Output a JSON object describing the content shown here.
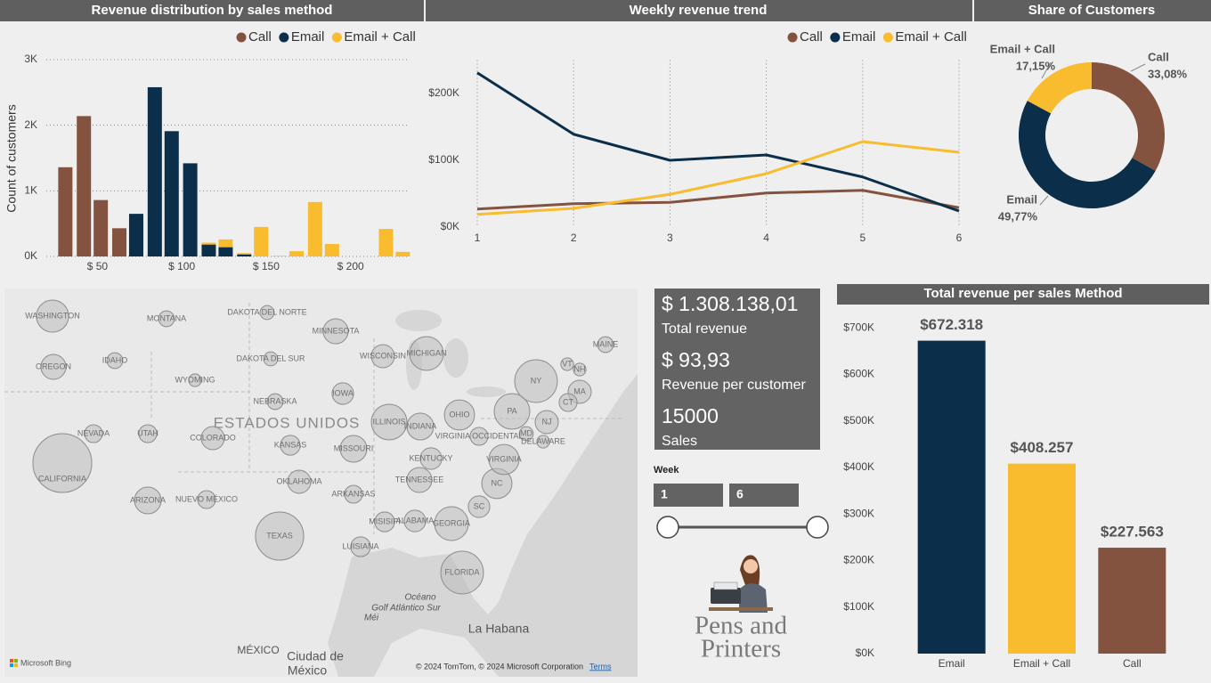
{
  "chart_data": [
    {
      "type": "bar",
      "title": "Revenue distribution by sales method",
      "y_label": "Count of customers",
      "xlim": [
        25,
        235
      ],
      "xticks": [
        {
          "value": 50,
          "label": "$ 50"
        },
        {
          "value": 100,
          "label": "$ 100"
        },
        {
          "value": 150,
          "label": "$ 150"
        },
        {
          "value": 200,
          "label": "$ 200"
        }
      ],
      "ylim": [
        0,
        3000
      ],
      "yticks": [
        {
          "value": 0,
          "label": "0K"
        },
        {
          "value": 1000,
          "label": "1K"
        },
        {
          "value": 2000,
          "label": "2K"
        },
        {
          "value": 3000,
          "label": "3K"
        }
      ],
      "grid": true,
      "legend": "top-right",
      "series": [
        {
          "name": "Call",
          "color": "#84533f",
          "x": [
            31,
            42,
            52,
            63
          ],
          "values": [
            1360,
            2140,
            860,
            430
          ]
        },
        {
          "name": "Email",
          "color": "#0b2f4a",
          "x": [
            73,
            84,
            94,
            105,
            116,
            126,
            137
          ],
          "values": [
            650,
            2580,
            1910,
            1420,
            180,
            140,
            30
          ]
        },
        {
          "name": "Email + Call",
          "color": "#f8bc2e",
          "x": [
            116,
            126,
            137,
            147,
            158,
            168,
            179,
            189,
            221,
            231
          ],
          "values": [
            210,
            260,
            50,
            450,
            10,
            80,
            830,
            190,
            420,
            70
          ]
        }
      ]
    },
    {
      "type": "line",
      "title": "Weekly revenue trend",
      "x": [
        1,
        2,
        3,
        4,
        5,
        6
      ],
      "xlim": [
        1,
        6
      ],
      "xticks": [
        1,
        2,
        3,
        4,
        5,
        6
      ],
      "ylim": [
        0,
        250000
      ],
      "yticks": [
        {
          "value": 0,
          "label": "$0K"
        },
        {
          "value": 100000,
          "label": "$100K"
        },
        {
          "value": 200000,
          "label": "$200K"
        }
      ],
      "grid": true,
      "legend": "top-right",
      "series": [
        {
          "name": "Call",
          "color": "#84533f",
          "values": [
            27000,
            35000,
            37000,
            51000,
            55000,
            29000
          ]
        },
        {
          "name": "Email",
          "color": "#0b2f4a",
          "values": [
            231000,
            139000,
            100000,
            108000,
            75000,
            24000
          ]
        },
        {
          "name": "Email + Call",
          "color": "#f8bc2e",
          "values": [
            19000,
            28000,
            49000,
            80000,
            128000,
            112000
          ]
        }
      ]
    },
    {
      "type": "pie",
      "title": "Share of Customers",
      "donut": true,
      "categories": [
        "Call",
        "Email",
        "Email + Call"
      ],
      "values": [
        33.08,
        49.77,
        17.15
      ],
      "value_labels": [
        "33,08%",
        "49,77%",
        "17,15%"
      ],
      "colors": [
        "#84533f",
        "#0b2f4a",
        "#f8bc2e"
      ]
    },
    {
      "type": "bar",
      "title": "Total revenue per sales Method",
      "categories": [
        "Email",
        "Email + Call",
        "Call"
      ],
      "values": [
        672318,
        408257,
        227563
      ],
      "value_labels": [
        "$672.318",
        "$408.257",
        "$227.563"
      ],
      "colors": [
        "#0b2f4a",
        "#f8bc2e",
        "#84533f"
      ],
      "ylim": [
        0,
        750000
      ],
      "yticks": [
        {
          "value": 0,
          "label": "$0K"
        },
        {
          "value": 100000,
          "label": "$100K"
        },
        {
          "value": 200000,
          "label": "$200K"
        },
        {
          "value": 300000,
          "label": "$300K"
        },
        {
          "value": 400000,
          "label": "$400K"
        },
        {
          "value": 500000,
          "label": "$500K"
        },
        {
          "value": 600000,
          "label": "$600K"
        },
        {
          "value": 700000,
          "label": "$700K"
        }
      ],
      "grid": false
    }
  ],
  "kpis": [
    {
      "value": "$ 1.308.138,01",
      "label": "Total revenue"
    },
    {
      "value": "$ 93,93",
      "label": "Revenue per customer"
    },
    {
      "value": "15000",
      "label": "Sales"
    }
  ],
  "slicer": {
    "title": "Week",
    "start": 1,
    "end": 6
  },
  "logo": {
    "lines": [
      "Pens and",
      "Printers"
    ]
  },
  "map": {
    "country": "ESTADOS UNIDOS",
    "places": [
      {
        "name": "WASHINGTON",
        "size": 580
      },
      {
        "name": "OREGON",
        "size": 350
      },
      {
        "name": "CALIFORNIA",
        "size": 1940
      },
      {
        "name": "NEVADA",
        "size": 180
      },
      {
        "name": "IDAHO",
        "size": 140
      },
      {
        "name": "MONTANA",
        "size": 140
      },
      {
        "name": "UTAH",
        "size": 180
      },
      {
        "name": "ARIZONA",
        "size": 400
      },
      {
        "name": "COLORADO",
        "size": 300
      },
      {
        "name": "NUEVO MÉXICO",
        "size": 180
      },
      {
        "name": "WYOMING",
        "size": 90
      },
      {
        "name": "DAKOTA DEL NORTE",
        "size": 110
      },
      {
        "name": "DAKOTA DEL SUR",
        "size": 110
      },
      {
        "name": "NEBRASKA",
        "size": 140
      },
      {
        "name": "KANSAS",
        "size": 220
      },
      {
        "name": "OKLAHOMA",
        "size": 300
      },
      {
        "name": "TEXAS",
        "size": 1300
      },
      {
        "name": "MINNESOTA",
        "size": 350
      },
      {
        "name": "IOWA",
        "size": 260
      },
      {
        "name": "MISSOURI",
        "size": 400
      },
      {
        "name": "ARKANSAS",
        "size": 180
      },
      {
        "name": "LUISIANA",
        "size": 220
      },
      {
        "name": "WISCONSIN",
        "size": 300
      },
      {
        "name": "ILLINOIS",
        "size": 710
      },
      {
        "name": "MICHIGAN",
        "size": 640
      },
      {
        "name": "INDIANA",
        "size": 400
      },
      {
        "name": "KENTUCKY",
        "size": 260
      },
      {
        "name": "TENNESSEE",
        "size": 350
      },
      {
        "name": "MISISIPI",
        "size": 220
      },
      {
        "name": "ALABAMA",
        "size": 260
      },
      {
        "name": "OHIO",
        "size": 510
      },
      {
        "name": "GEORGIA",
        "size": 640
      },
      {
        "name": "FLORIDA",
        "size": 1020
      },
      {
        "name": "SC",
        "size": 260
      },
      {
        "name": "NC",
        "size": 510
      },
      {
        "name": "VIRGINIA",
        "size": 510
      },
      {
        "name": "VIRGINIA OCCIDENTAL",
        "size": 180
      },
      {
        "name": "PA",
        "size": 710
      },
      {
        "name": "NY",
        "size": 1020
      },
      {
        "name": "NJ",
        "size": 300
      },
      {
        "name": "MD",
        "size": 110
      },
      {
        "name": "DELAWARE",
        "size": 90
      },
      {
        "name": "MAINE",
        "size": 140
      },
      {
        "name": "VT",
        "size": 90
      },
      {
        "name": "NH",
        "size": 90
      },
      {
        "name": "MA",
        "size": 300
      },
      {
        "name": "CT",
        "size": 180
      }
    ],
    "other_labels": [
      "Océano",
      "Golf Atlántico Sur",
      "Méi",
      "MÉXICO",
      "Ciudad de",
      "México",
      "La Habana"
    ],
    "provider": "Microsoft Bing",
    "copyright": "© 2024 TomTom, © 2024 Microsoft Corporation",
    "terms": "Terms"
  }
}
